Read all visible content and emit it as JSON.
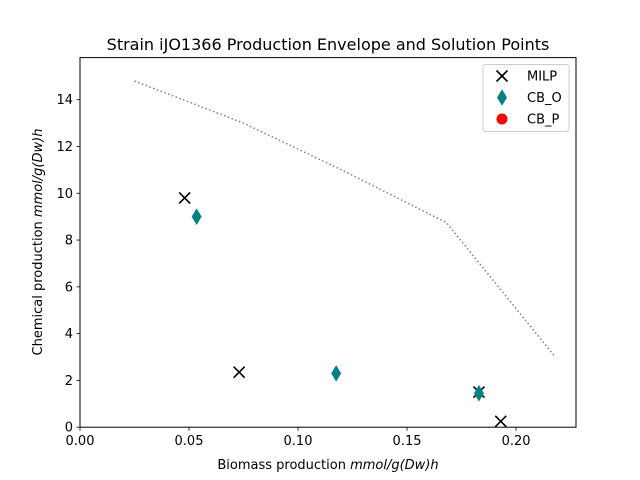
{
  "chart_data": {
    "type": "scatter",
    "title": "Strain iJO1366 Production Envelope and Solution Points",
    "xlabel_prefix": "Biomass production ",
    "xlabel_unit": "mmol/g(Dw)h",
    "ylabel_prefix": "Chemical production ",
    "ylabel_unit": "mmol/g(Dw)h",
    "xlim": [
      0.0,
      0.2275
    ],
    "ylim": [
      0.0,
      15.8
    ],
    "xticks": [
      0.0,
      0.05,
      0.1,
      0.15,
      0.2
    ],
    "xtick_labels": [
      "0.00",
      "0.05",
      "0.10",
      "0.15",
      "0.20"
    ],
    "yticks": [
      0,
      2,
      4,
      6,
      8,
      10,
      12,
      14
    ],
    "ytick_labels": [
      "0",
      "2",
      "4",
      "6",
      "8",
      "10",
      "12",
      "14"
    ],
    "legend_position": "top-right",
    "envelope": {
      "style": "dotted",
      "color": "#808080",
      "points": [
        [
          0.025,
          14.8
        ],
        [
          0.075,
          13.0
        ],
        [
          0.12,
          11.0
        ],
        [
          0.168,
          8.75
        ],
        [
          0.218,
          3.0
        ]
      ]
    },
    "series": [
      {
        "name": "MILP",
        "marker": "x",
        "color": "#000000",
        "points": [
          [
            0.048,
            9.8
          ],
          [
            0.073,
            2.35
          ],
          [
            0.193,
            0.25
          ],
          [
            0.183,
            1.5
          ]
        ]
      },
      {
        "name": "CB_O",
        "marker": "thin-diamond",
        "color": "#008080",
        "points": [
          [
            0.0535,
            9.0
          ],
          [
            0.1175,
            2.3
          ],
          [
            0.183,
            1.45
          ]
        ]
      },
      {
        "name": "CB_P",
        "marker": "circle",
        "color": "#ff0000",
        "points": []
      }
    ]
  }
}
